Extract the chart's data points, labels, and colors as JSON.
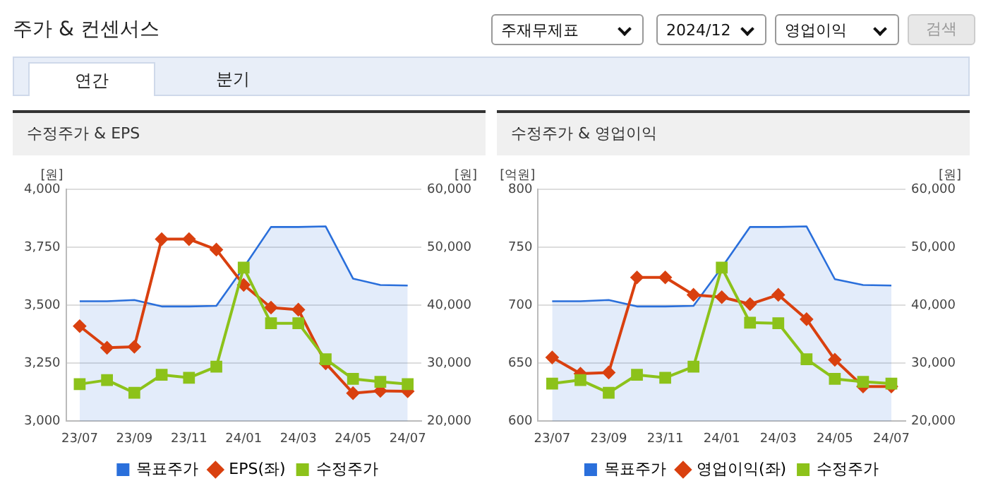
{
  "chart_data": [
    {
      "type": "other",
      "title": "주가 & 컨센서스",
      "annotations": [
        "주재무제표",
        "2024/12",
        "영업이익",
        "검색",
        "연간",
        "분기"
      ]
    },
    {
      "type": "line",
      "title": "수정주가 & EPS",
      "ylabel": "[원]",
      "y2label": "[원]",
      "categories": [
        "23/07",
        null,
        "23/09",
        null,
        "23/11",
        null,
        "24/01",
        null,
        "24/03",
        null,
        "24/05",
        null,
        "24/07"
      ],
      "ylim": [
        3000,
        4000
      ],
      "yticks": [
        {
          "value": 3000,
          "label": "3,000"
        },
        {
          "value": 3250,
          "label": "3,250"
        },
        {
          "value": 3500,
          "label": "3,500"
        },
        {
          "value": 3750,
          "label": "3,750"
        },
        {
          "value": 4000,
          "label": "4,000"
        }
      ],
      "y2lim": [
        20000,
        60000
      ],
      "y2ticks": [
        {
          "value": 20000,
          "label": "20,000"
        },
        {
          "value": 30000,
          "label": "30,000"
        },
        {
          "value": 40000,
          "label": "40,000"
        },
        {
          "value": 50000,
          "label": "50,000"
        },
        {
          "value": 60000,
          "label": "60,000"
        }
      ],
      "grid": "y",
      "legend": "bottom",
      "series": [
        {
          "name": "목표주가",
          "type": "area",
          "axis": "y2",
          "color": "#2a6fdb",
          "marker": "none",
          "values": [
            40700,
            40700,
            40900,
            39800,
            39800,
            39900,
            46500,
            53500,
            53500,
            53600,
            44600,
            43500,
            43400
          ]
        },
        {
          "name": "EPS(좌)",
          "type": "line",
          "color": "#d9400f",
          "marker": "diamond",
          "values": [
            3410,
            3317,
            3321,
            3785,
            3785,
            3740,
            3588,
            3490,
            3481,
            3250,
            3121,
            3131,
            3129
          ]
        },
        {
          "name": "수정주가",
          "type": "line",
          "axis": "y2",
          "color": "#8cc21a",
          "marker": "square",
          "values": [
            26400,
            27100,
            24900,
            28000,
            27500,
            29400,
            46500,
            36900,
            36900,
            30700,
            27300,
            26800,
            26400
          ]
        }
      ]
    },
    {
      "type": "line",
      "title": "수정주가 & 영업이익",
      "ylabel": "[억원]",
      "y2label": "[원]",
      "categories": [
        "23/07",
        null,
        "23/09",
        null,
        "23/11",
        null,
        "24/01",
        null,
        "24/03",
        null,
        "24/05",
        null,
        "24/07"
      ],
      "ylim": [
        600,
        800
      ],
      "yticks": [
        600,
        650,
        700,
        750,
        800
      ],
      "y2lim": [
        20000,
        60000
      ],
      "y2ticks": [
        {
          "value": 20000,
          "label": "20,000"
        },
        {
          "value": 30000,
          "label": "30,000"
        },
        {
          "value": 40000,
          "label": "40,000"
        },
        {
          "value": 50000,
          "label": "50,000"
        },
        {
          "value": 60000,
          "label": "60,000"
        }
      ],
      "grid": "y",
      "legend": "bottom",
      "series": [
        {
          "name": "목표주가",
          "type": "area",
          "axis": "y2",
          "color": "#2a6fdb",
          "marker": "none",
          "values": [
            40700,
            40700,
            40900,
            39800,
            39800,
            39900,
            46500,
            53500,
            53500,
            53600,
            44500,
            43500,
            43400
          ]
        },
        {
          "name": "영업이익(좌)",
          "type": "line",
          "color": "#d9400f",
          "marker": "diamond",
          "values": [
            655,
            641,
            642,
            724,
            724,
            709,
            707,
            701,
            709,
            688,
            653,
            630,
            630
          ]
        },
        {
          "name": "수정주가",
          "type": "line",
          "axis": "y2",
          "color": "#8cc21a",
          "marker": "square",
          "values": [
            26500,
            27100,
            24900,
            28000,
            27500,
            29400,
            46500,
            37000,
            36900,
            30700,
            27300,
            26800,
            26500
          ]
        }
      ]
    }
  ]
}
